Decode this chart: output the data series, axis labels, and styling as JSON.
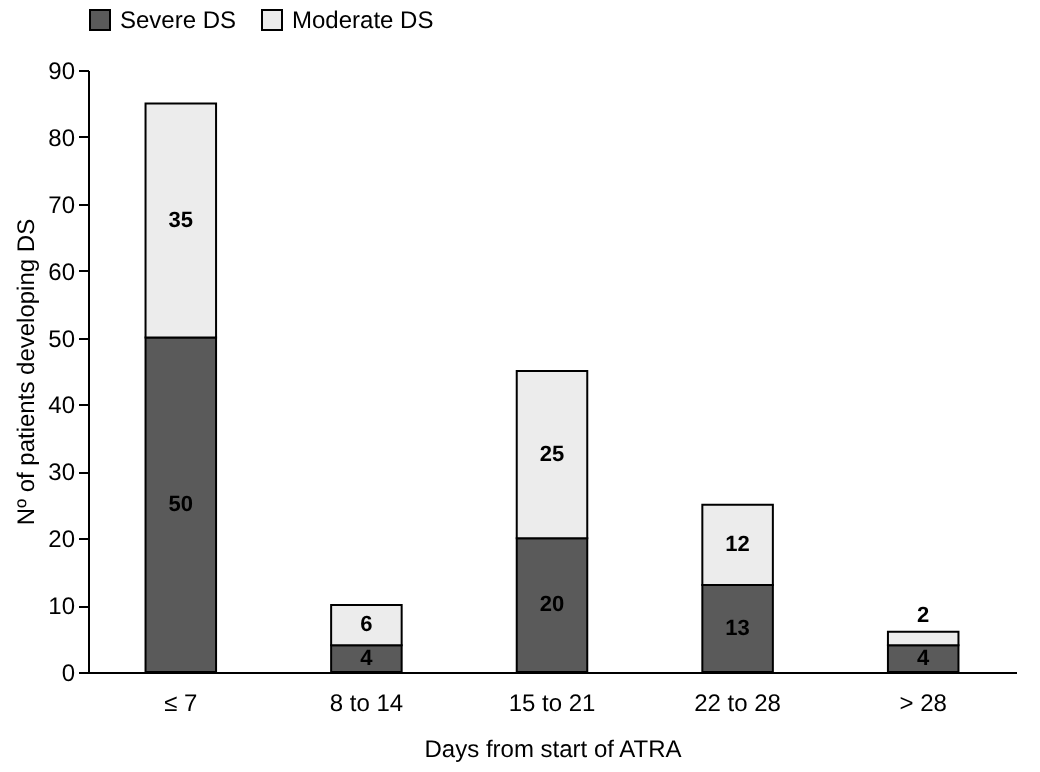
{
  "chart_data": {
    "type": "bar",
    "stacked": true,
    "xlabel": "Days from start of ATRA",
    "ylabel": "Nº of patients developing DS",
    "categories": [
      "≤ 7",
      "8 to 14",
      "15 to 21",
      "22 to 28",
      "> 28"
    ],
    "series": [
      {
        "name": "Severe DS",
        "color": "#5a5a5a",
        "values": [
          50,
          4,
          20,
          13,
          4
        ],
        "value_labels": [
          "50",
          "4",
          "20",
          "13",
          "4"
        ]
      },
      {
        "name": "Moderate DS",
        "color": "#ececec",
        "values": [
          35,
          6,
          25,
          12,
          2
        ],
        "value_labels": [
          "35",
          "6",
          "25",
          "12",
          "2"
        ]
      }
    ],
    "ylim": [
      0,
      90
    ],
    "yticks": [
      0,
      10,
      20,
      30,
      40,
      50,
      60,
      70,
      80,
      90
    ],
    "legend": "top",
    "grid": false
  }
}
